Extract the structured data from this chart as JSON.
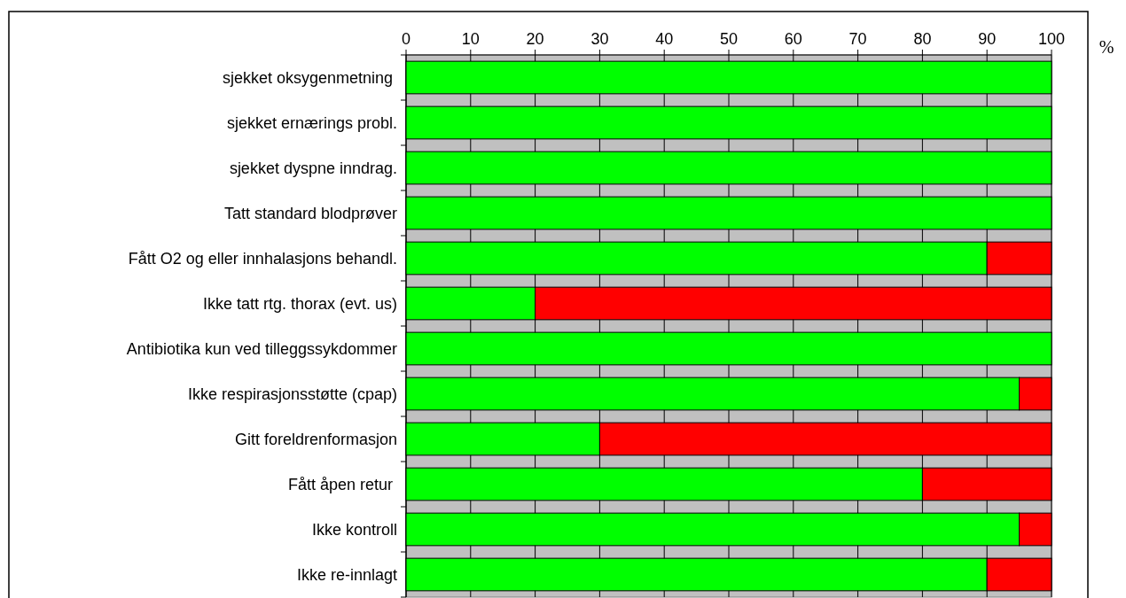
{
  "chart_data": {
    "type": "bar",
    "orientation": "horizontal",
    "stacked": true,
    "xlabel": "%",
    "categories": [
      "sjekket oksygenmetning ",
      "sjekket ernærings probl.",
      "sjekket dyspne inndrag.",
      "Tatt standard blodprøver",
      "Fått O2 og eller innhalasjons behandl.",
      "Ikke tatt rtg. thorax (evt. us)",
      "Antibiotika kun ved tilleggssykdommer",
      "Ikke respirasjonsstøtte (cpap)",
      "Gitt foreldrenformasjon",
      "Fått åpen retur ",
      "Ikke kontroll",
      "Ikke re-innlagt"
    ],
    "series": [
      {
        "color": "#00ff00",
        "values": [
          100,
          100,
          100,
          100,
          90,
          20,
          100,
          95,
          30,
          80,
          95,
          90
        ]
      },
      {
        "color": "#ff0000",
        "values": [
          0,
          0,
          0,
          0,
          10,
          80,
          0,
          5,
          70,
          20,
          5,
          10
        ]
      }
    ],
    "xlim": [
      0,
      100
    ],
    "xticks": [
      0,
      10,
      20,
      30,
      40,
      50,
      60,
      70,
      80,
      90,
      100
    ],
    "grid": "x"
  }
}
